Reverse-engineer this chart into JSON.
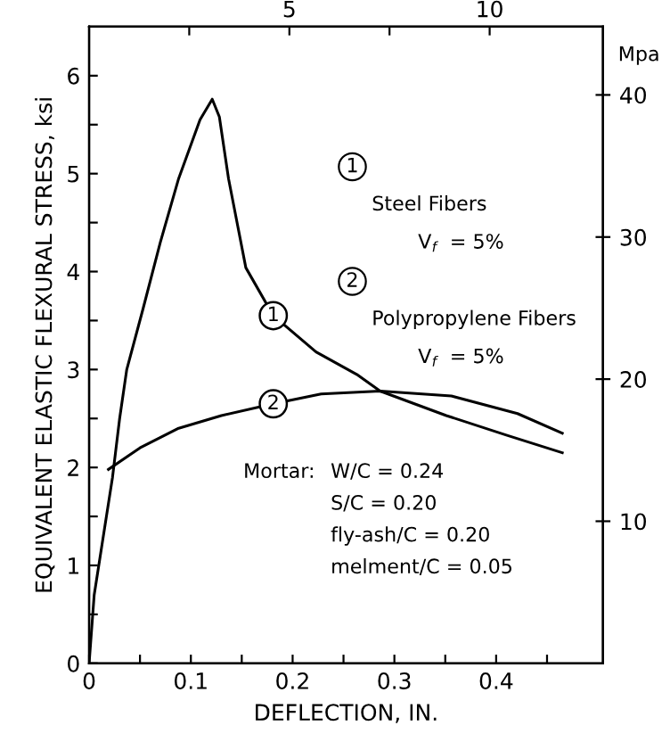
{
  "chart_data": {
    "type": "line",
    "xlabel": "DEFLECTION, IN.",
    "ylabel": "EQUIVALENT ELASTIC FLEXURAL STRESS, ksi",
    "y2label": "Mpa",
    "series": [
      {
        "color": "#000000",
        "x": [
          0,
          0.005,
          0.014,
          0.023,
          0.03,
          0.037,
          0.053,
          0.07,
          0.088,
          0.109,
          0.121,
          0.128,
          0.137,
          0.154,
          0.181,
          0.223,
          0.263,
          0.286,
          0.351,
          0.41,
          0.465
        ],
        "values": [
          0,
          0.7,
          1.3,
          1.9,
          2.5,
          3.0,
          3.62,
          4.3,
          4.95,
          5.55,
          5.76,
          5.58,
          4.95,
          4.04,
          3.55,
          3.18,
          2.95,
          2.78,
          2.53,
          2.33,
          2.15
        ]
      },
      {
        "color": "#000000",
        "x": [
          0.019,
          0.05,
          0.088,
          0.13,
          0.181,
          0.228,
          0.286,
          0.356,
          0.421,
          0.465
        ],
        "values": [
          1.98,
          2.2,
          2.4,
          2.53,
          2.65,
          2.75,
          2.78,
          2.73,
          2.55,
          2.35
        ]
      }
    ],
    "annotations": [
      {
        "text": "1",
        "x": 0.181,
        "y": 3.55
      },
      {
        "text": "2",
        "x": 0.181,
        "y": 2.65
      },
      "1",
      "Steel Fibers",
      "V$_{f}$  = 5%",
      "2",
      "Polypropylene Fibers",
      "V$_{f}$  = 5%",
      "Mortar:",
      "W/C = 0.24",
      "S/C = 0.20",
      "fly-ash/C = 0.20",
      "melment/C = 0.05"
    ],
    "xlim": [
      0,
      0.505
    ],
    "xticks": [
      0,
      {
        "value": 0.05,
        "label": null
      },
      0.1,
      {
        "value": 0.15,
        "label": null
      },
      0.2,
      {
        "value": 0.25,
        "label": null
      },
      0.3,
      {
        "value": 0.35,
        "label": null
      },
      0.4,
      {
        "value": 0.45,
        "label": null
      }
    ],
    "ylim": [
      0,
      6.5
    ],
    "yticks": [
      0,
      {
        "value": 0.5,
        "label": null
      },
      1,
      {
        "value": 1.5,
        "label": null
      },
      2,
      {
        "value": 2.5,
        "label": null
      },
      3,
      {
        "value": 3.5,
        "label": null
      },
      4,
      {
        "value": 4.5,
        "label": null
      },
      5,
      {
        "value": 5.5,
        "label": null
      },
      6
    ],
    "y2lim": [
      0,
      44.8
    ],
    "y2ticks": [
      10,
      20,
      30,
      40
    ],
    "x2lim": [
      0,
      12.83
    ],
    "x2ticks": [
      {
        "value": 2.5,
        "label": null
      },
      5,
      {
        "value": 7.5,
        "label": null
      },
      10
    ],
    "grid": false,
    "legend": false,
    "marker": "none",
    "line_style": "solid"
  }
}
